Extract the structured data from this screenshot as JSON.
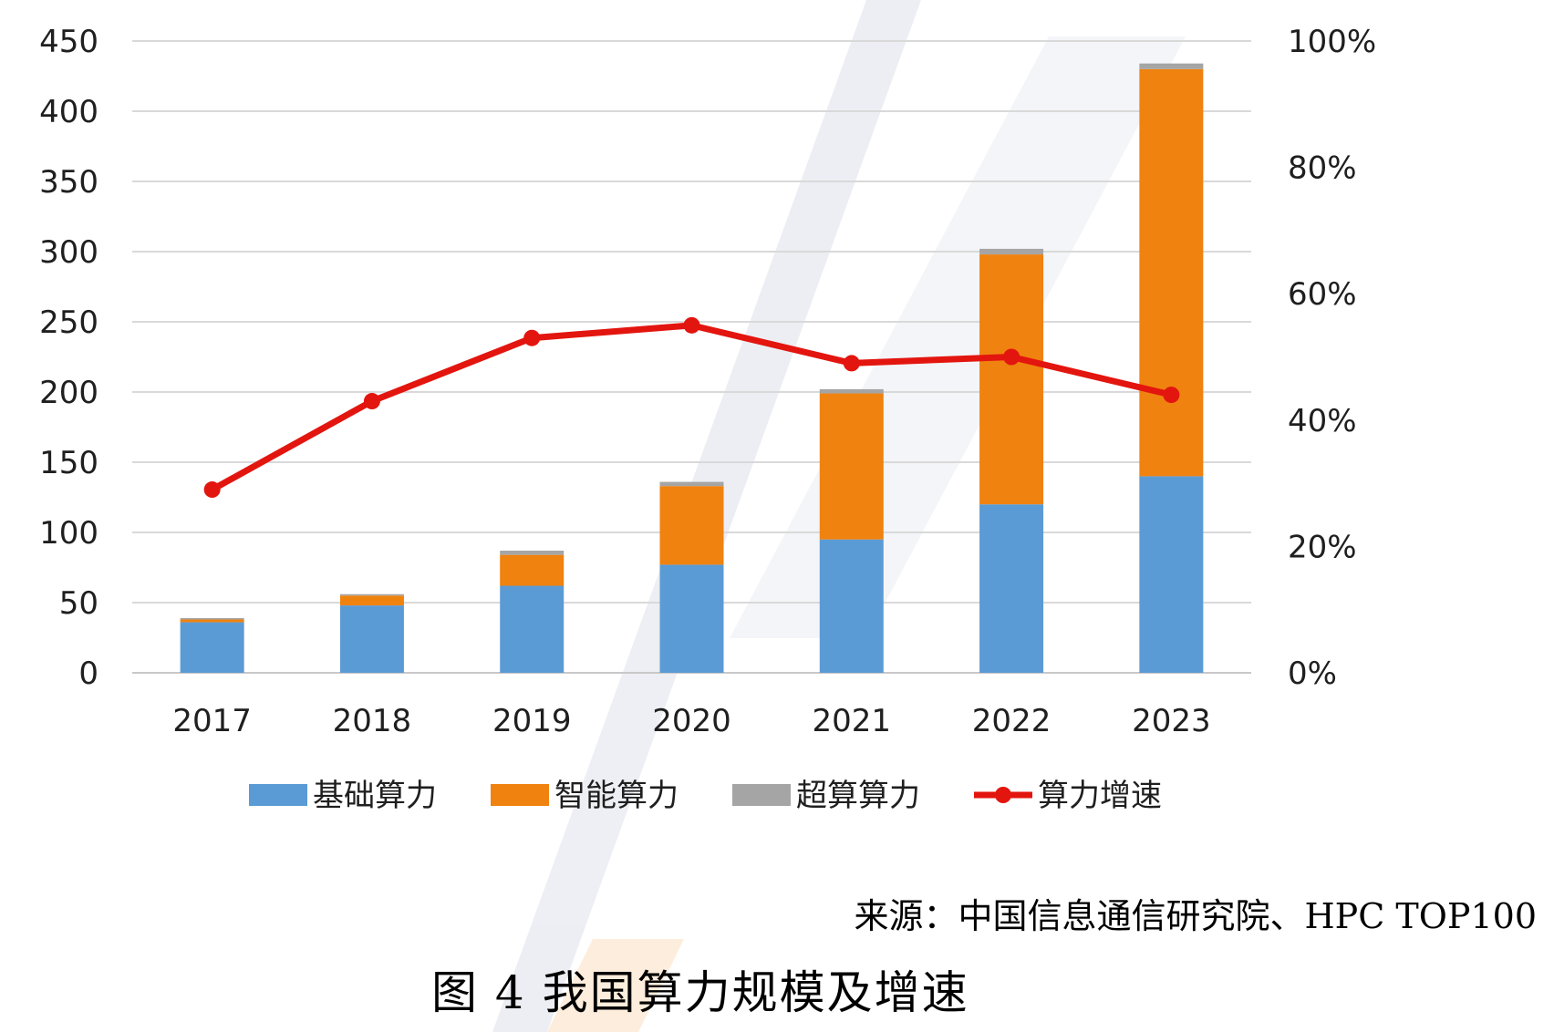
{
  "chart_data": {
    "type": "bar",
    "stacked": true,
    "categories": [
      "2017",
      "2018",
      "2019",
      "2020",
      "2021",
      "2022",
      "2023"
    ],
    "series": [
      {
        "name": "基础算力",
        "kind": "bar",
        "color": "#5b9bd5",
        "values": [
          36,
          48,
          62,
          77,
          95,
          120,
          140
        ]
      },
      {
        "name": "智能算力",
        "kind": "bar",
        "color": "#f0820f",
        "values": [
          2,
          7,
          22,
          56,
          104,
          178,
          290
        ]
      },
      {
        "name": "超算算力",
        "kind": "bar",
        "color": "#a5a5a5",
        "values": [
          1,
          1,
          3,
          3,
          3,
          4,
          4
        ]
      },
      {
        "name": "算力增速",
        "kind": "line",
        "axis": "right",
        "color": "#e3150f",
        "values": [
          0.29,
          0.43,
          0.53,
          0.55,
          0.49,
          0.5,
          0.44
        ]
      }
    ],
    "y_left": {
      "min": 0,
      "max": 450,
      "ticks": [
        "0",
        "50",
        "100",
        "150",
        "200",
        "250",
        "300",
        "350",
        "400",
        "450"
      ]
    },
    "y_right": {
      "min": 0,
      "max": 1,
      "ticks": [
        "0%",
        "20%",
        "40%",
        "60%",
        "80%",
        "100%"
      ]
    },
    "grid": true,
    "legend_position": "bottom"
  },
  "source": "来源：中国信息通信研究院、HPC TOP100",
  "caption": "图 4  我国算力规模及增速"
}
